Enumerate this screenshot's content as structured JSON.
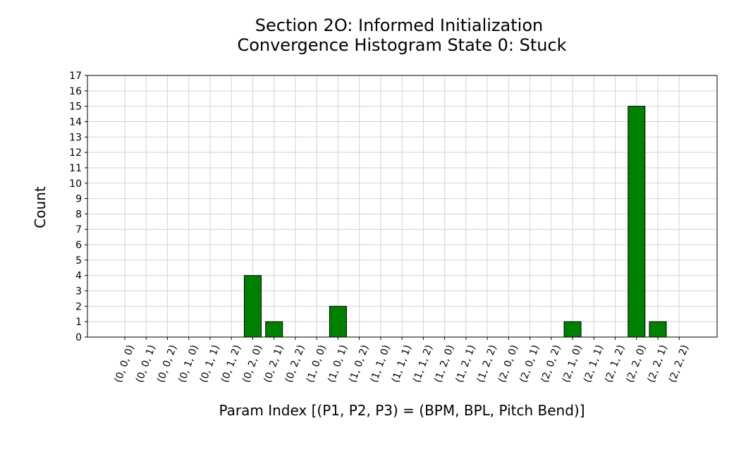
{
  "chart_data": {
    "type": "bar",
    "title": "Section 2O: Informed Initialization\nConvergence Histogram State 0: Stuck",
    "xlabel": "Param Index [(P1, P2, P3) = (BPM, BPL, Pitch Bend)]",
    "ylabel": "Count",
    "categories": [
      "(0, 0, 0)",
      "(0, 0, 1)",
      "(0, 0, 2)",
      "(0, 1, 0)",
      "(0, 1, 1)",
      "(0, 1, 2)",
      "(0, 2, 0)",
      "(0, 2, 1)",
      "(0, 2, 2)",
      "(1, 0, 0)",
      "(1, 0, 1)",
      "(1, 0, 2)",
      "(1, 1, 0)",
      "(1, 1, 1)",
      "(1, 1, 2)",
      "(1, 2, 0)",
      "(1, 2, 1)",
      "(1, 2, 2)",
      "(2, 0, 0)",
      "(2, 0, 1)",
      "(2, 0, 2)",
      "(2, 1, 0)",
      "(2, 1, 1)",
      "(2, 1, 2)",
      "(2, 2, 0)",
      "(2, 2, 1)",
      "(2, 2, 2)"
    ],
    "values": [
      0,
      0,
      0,
      0,
      0,
      0,
      4,
      1,
      0,
      0,
      2,
      0,
      0,
      0,
      0,
      0,
      0,
      0,
      0,
      0,
      0,
      1,
      0,
      0,
      15,
      1,
      0
    ],
    "ylim": [
      0,
      17
    ],
    "yticks": [
      0,
      1,
      2,
      3,
      4,
      5,
      6,
      7,
      8,
      9,
      10,
      11,
      12,
      13,
      14,
      15,
      16,
      17
    ],
    "grid": true,
    "bar_color": "#008000",
    "bar_edge_color": "#000000",
    "grid_color": "#d3d3d3"
  }
}
